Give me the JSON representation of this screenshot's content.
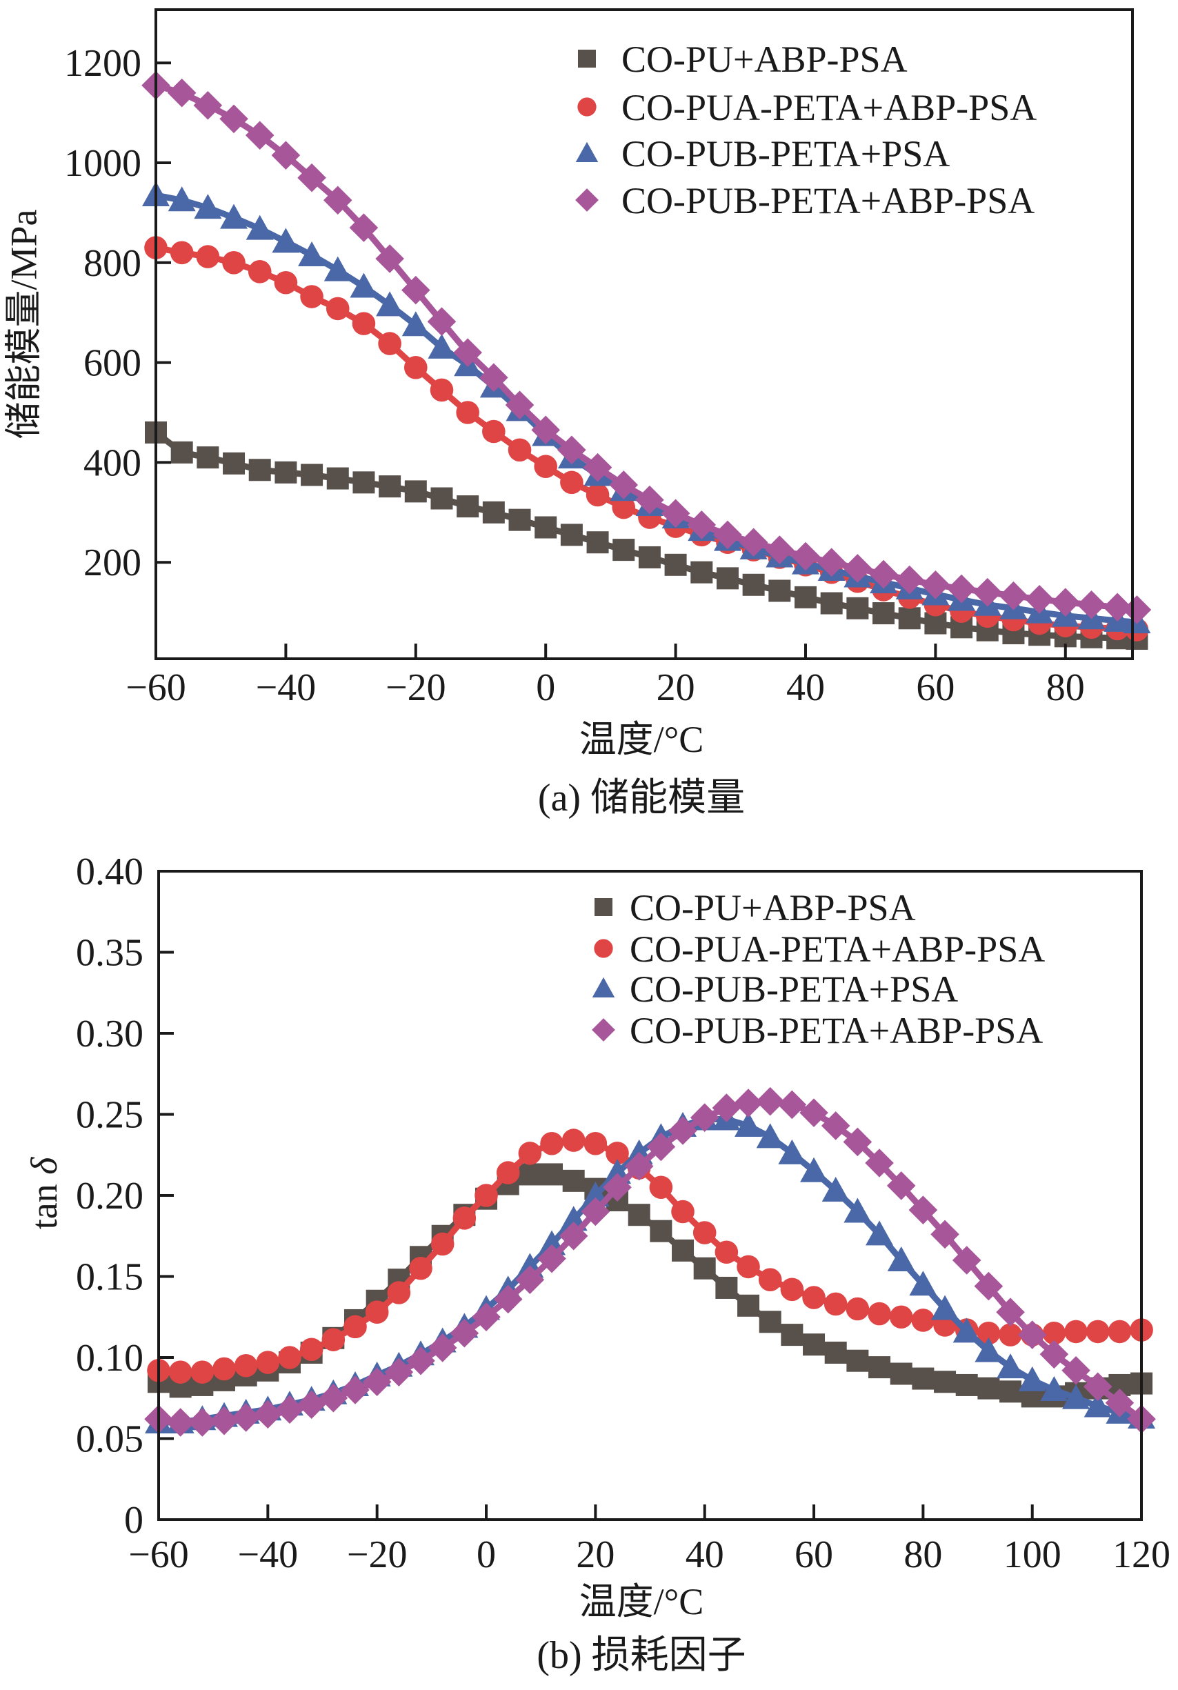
{
  "chart_data": [
    {
      "id": "a",
      "type": "line",
      "caption": "(a) 储能模量",
      "xlabel": "温度/°C",
      "ylabel": "储能模量/MPa",
      "xlim": [
        -60,
        90.3
      ],
      "ylim": [
        7,
        1306
      ],
      "xticks": [
        -60,
        -40,
        -20,
        0,
        20,
        40,
        60,
        80
      ],
      "xtick_labels": [
        "−60",
        "−40",
        "−20",
        "0",
        "20",
        "40",
        "60",
        "80"
      ],
      "yticks": [
        200,
        400,
        600,
        800,
        1000,
        1200
      ],
      "ytick_labels": [
        "200",
        "400",
        "600",
        "800",
        "1000",
        "1200"
      ],
      "grid": false,
      "legend_position": "top-right",
      "x": [
        -60,
        -56,
        -52,
        -48,
        -44,
        -40,
        -36,
        -32,
        -28,
        -24,
        -20,
        -16,
        -12,
        -8,
        -4,
        0,
        4,
        8,
        12,
        16,
        20,
        24,
        28,
        32,
        36,
        40,
        44,
        48,
        52,
        56,
        60,
        64,
        68,
        72,
        76,
        80,
        84,
        88,
        91
      ],
      "series": [
        {
          "name": "CO-PU+ABP-PSA",
          "marker": "square",
          "color": "#58504b",
          "values": [
            460,
            420,
            410,
            398,
            385,
            380,
            375,
            368,
            360,
            352,
            342,
            328,
            312,
            300,
            285,
            270,
            255,
            240,
            225,
            210,
            195,
            180,
            168,
            155,
            143,
            130,
            118,
            108,
            98,
            88,
            78,
            70,
            64,
            58,
            55,
            52,
            50,
            48,
            47
          ]
        },
        {
          "name": "CO-PUA-PETA+ABP-PSA",
          "marker": "circle",
          "color": "#e04545",
          "values": [
            830,
            820,
            812,
            800,
            782,
            760,
            732,
            708,
            678,
            638,
            590,
            545,
            500,
            462,
            425,
            392,
            360,
            335,
            310,
            290,
            272,
            255,
            240,
            225,
            210,
            195,
            180,
            162,
            145,
            130,
            115,
            102,
            92,
            85,
            78,
            73,
            70,
            67,
            65
          ]
        },
        {
          "name": "CO-PUB-PETA+PSA",
          "marker": "triangle",
          "color": "#4a68a8",
          "values": [
            935,
            925,
            910,
            890,
            868,
            842,
            815,
            785,
            752,
            715,
            675,
            630,
            595,
            552,
            505,
            455,
            410,
            375,
            345,
            315,
            290,
            265,
            245,
            228,
            212,
            198,
            185,
            172,
            160,
            148,
            136,
            125,
            115,
            108,
            100,
            93,
            88,
            83,
            80
          ]
        },
        {
          "name": "CO-PUB-PETA+ABP-PSA",
          "marker": "diamond",
          "color": "#a8569a",
          "values": [
            1155,
            1140,
            1115,
            1088,
            1055,
            1015,
            970,
            925,
            870,
            808,
            745,
            682,
            620,
            570,
            515,
            465,
            425,
            390,
            355,
            325,
            298,
            275,
            255,
            240,
            225,
            212,
            200,
            188,
            176,
            165,
            155,
            147,
            140,
            133,
            126,
            120,
            115,
            110,
            105
          ]
        }
      ]
    },
    {
      "id": "b",
      "type": "line",
      "caption": "(b) 损耗因子",
      "xlabel": "温度/°C",
      "ylabel": "tan δ",
      "xlim": [
        -60,
        120
      ],
      "ylim": [
        0,
        0.4
      ],
      "xticks": [
        -60,
        -40,
        -20,
        0,
        20,
        40,
        60,
        80,
        100,
        120
      ],
      "xtick_labels": [
        "−60",
        "−40",
        "−20",
        "0",
        "20",
        "40",
        "60",
        "80",
        "100",
        "120"
      ],
      "yticks": [
        0,
        0.05,
        0.1,
        0.15,
        0.2,
        0.25,
        0.3,
        0.35,
        0.4
      ],
      "ytick_labels": [
        "0",
        "0.05",
        "0.10",
        "0.15",
        "0.20",
        "0.25",
        "0.30",
        "0.35",
        "0.40"
      ],
      "grid": false,
      "legend_position": "top-right",
      "x": [
        -60,
        -56,
        -52,
        -48,
        -44,
        -40,
        -36,
        -32,
        -28,
        -24,
        -20,
        -16,
        -12,
        -8,
        -4,
        0,
        4,
        8,
        12,
        16,
        20,
        24,
        28,
        32,
        36,
        40,
        44,
        48,
        52,
        56,
        60,
        64,
        68,
        72,
        76,
        80,
        84,
        88,
        92,
        96,
        100,
        104,
        108,
        112,
        116,
        120
      ],
      "series": [
        {
          "name": "CO-PU+ABP-PSA",
          "marker": "square",
          "color": "#58504b",
          "values": [
            0.085,
            0.082,
            0.083,
            0.086,
            0.089,
            0.092,
            0.097,
            0.103,
            0.112,
            0.123,
            0.135,
            0.148,
            0.162,
            0.175,
            0.188,
            0.198,
            0.207,
            0.213,
            0.213,
            0.209,
            0.204,
            0.197,
            0.188,
            0.178,
            0.166,
            0.155,
            0.143,
            0.132,
            0.122,
            0.114,
            0.108,
            0.103,
            0.098,
            0.094,
            0.09,
            0.087,
            0.085,
            0.083,
            0.081,
            0.079,
            0.076,
            0.076,
            0.078,
            0.081,
            0.083,
            0.084
          ]
        },
        {
          "name": "CO-PUA-PETA+ABP-PSA",
          "marker": "circle",
          "color": "#e04545",
          "values": [
            0.092,
            0.091,
            0.091,
            0.093,
            0.095,
            0.097,
            0.1,
            0.105,
            0.111,
            0.119,
            0.128,
            0.14,
            0.155,
            0.17,
            0.186,
            0.2,
            0.214,
            0.226,
            0.232,
            0.234,
            0.232,
            0.226,
            0.217,
            0.205,
            0.19,
            0.177,
            0.165,
            0.156,
            0.148,
            0.142,
            0.137,
            0.133,
            0.13,
            0.127,
            0.125,
            0.123,
            0.12,
            0.117,
            0.115,
            0.114,
            0.114,
            0.115,
            0.116,
            0.116,
            0.116,
            0.117
          ]
        },
        {
          "name": "CO-PUB-PETA+PSA",
          "marker": "triangle",
          "color": "#4a68a8",
          "values": [
            0.06,
            0.06,
            0.062,
            0.064,
            0.066,
            0.068,
            0.071,
            0.074,
            0.078,
            0.083,
            0.089,
            0.095,
            0.102,
            0.11,
            0.119,
            0.13,
            0.142,
            0.156,
            0.17,
            0.185,
            0.2,
            0.214,
            0.226,
            0.236,
            0.243,
            0.247,
            0.247,
            0.243,
            0.236,
            0.226,
            0.215,
            0.203,
            0.19,
            0.176,
            0.16,
            0.145,
            0.13,
            0.116,
            0.104,
            0.094,
            0.086,
            0.08,
            0.075,
            0.07,
            0.066,
            0.063
          ]
        },
        {
          "name": "CO-PUB-PETA+ABP-PSA",
          "marker": "diamond",
          "color": "#a8569a",
          "values": [
            0.062,
            0.06,
            0.06,
            0.061,
            0.063,
            0.065,
            0.068,
            0.071,
            0.075,
            0.08,
            0.085,
            0.091,
            0.098,
            0.106,
            0.115,
            0.125,
            0.136,
            0.148,
            0.161,
            0.175,
            0.19,
            0.205,
            0.218,
            0.23,
            0.24,
            0.248,
            0.254,
            0.257,
            0.258,
            0.256,
            0.251,
            0.243,
            0.233,
            0.22,
            0.206,
            0.191,
            0.176,
            0.16,
            0.144,
            0.128,
            0.114,
            0.102,
            0.092,
            0.082,
            0.072,
            0.062
          ]
        }
      ]
    }
  ]
}
